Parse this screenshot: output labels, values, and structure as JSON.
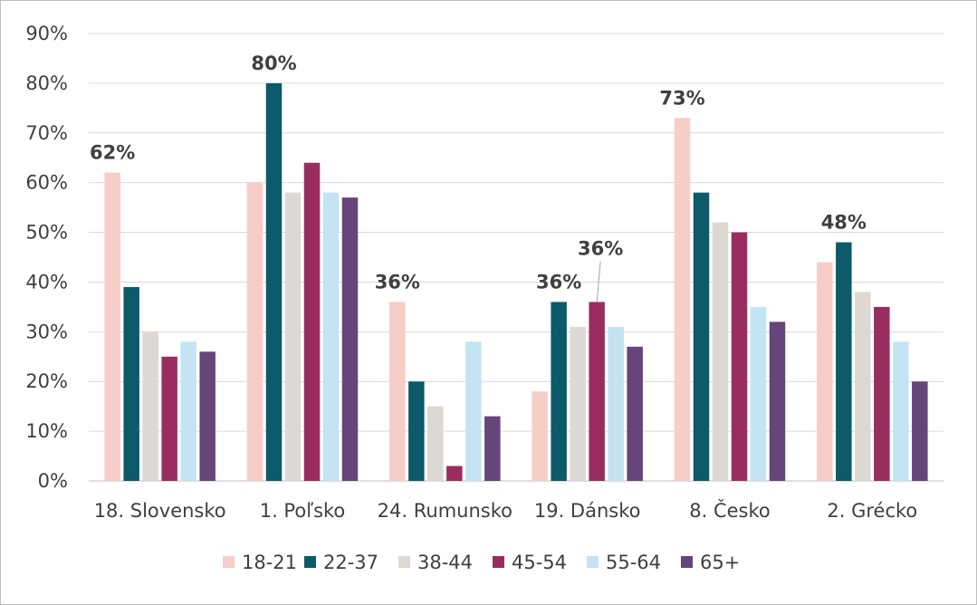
{
  "chart_data": {
    "type": "bar",
    "categories": [
      "18. Slovensko",
      "1. Poľsko",
      "24. Rumunsko",
      "19. Dánsko",
      "8. Česko",
      "2. Grécko"
    ],
    "series": [
      {
        "name": "18-21",
        "color": "#f7cdc8",
        "values": [
          62,
          60,
          36,
          18,
          73,
          44
        ]
      },
      {
        "name": "22-37",
        "color": "#0c5a6a",
        "values": [
          39,
          80,
          20,
          36,
          58,
          48
        ]
      },
      {
        "name": "38-44",
        "color": "#dcd9d4",
        "values": [
          30,
          58,
          15,
          31,
          52,
          38
        ]
      },
      {
        "name": "45-54",
        "color": "#9a2d5f",
        "values": [
          25,
          64,
          3,
          36,
          50,
          35
        ]
      },
      {
        "name": "55-64",
        "color": "#c4e3f3",
        "values": [
          28,
          58,
          28,
          31,
          35,
          28
        ]
      },
      {
        "name": "65+",
        "color": "#65457a",
        "values": [
          26,
          57,
          13,
          27,
          32,
          20
        ]
      }
    ],
    "ylim": [
      0,
      90
    ],
    "yticks": [
      "0%",
      "10%",
      "20%",
      "30%",
      "40%",
      "50%",
      "60%",
      "70%",
      "80%",
      "90%"
    ],
    "grid": true,
    "legend": "bottom",
    "annotations": [
      {
        "category": 0,
        "series": 0,
        "text": "62%"
      },
      {
        "category": 1,
        "series": 1,
        "text": "80%"
      },
      {
        "category": 2,
        "series": 0,
        "text": "36%"
      },
      {
        "category": 3,
        "series": 1,
        "text": "36%"
      },
      {
        "category": 3,
        "series": 3,
        "text": "36%"
      },
      {
        "category": 4,
        "series": 0,
        "text": "73%"
      },
      {
        "category": 5,
        "series": 1,
        "text": "48%"
      }
    ]
  }
}
